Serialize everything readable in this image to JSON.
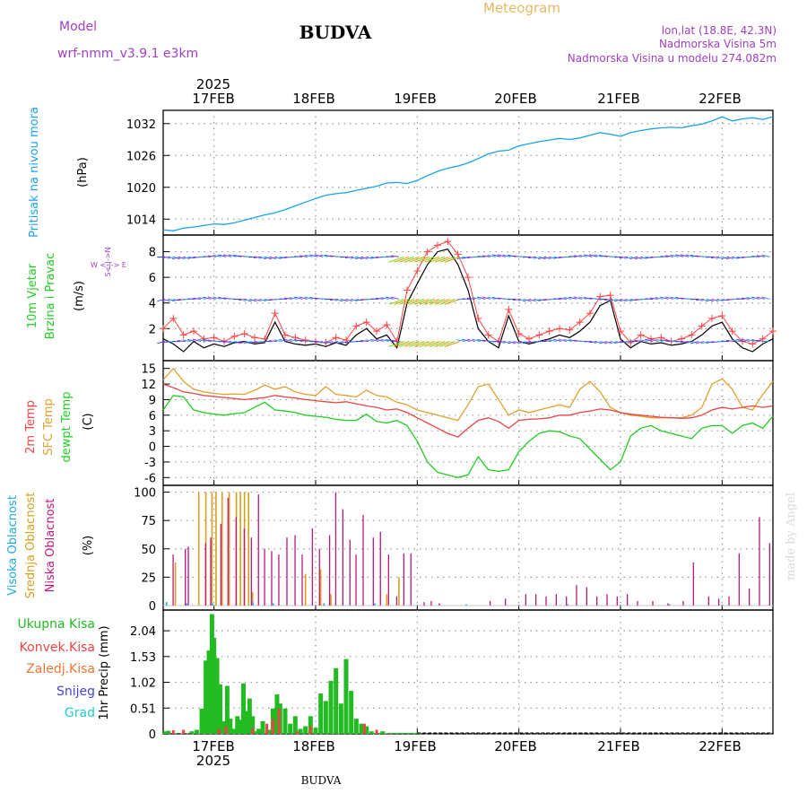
{
  "header": {
    "meteogram_label": "Meteogram",
    "station": "BUDVA",
    "model_label": "Model",
    "model_name": "wrf-nmm_v3.9.1  e3km",
    "coords": "lon,lat (18.8E, 42.3N)",
    "elevation": "Nadmorska Visina 5m",
    "model_elevation": "Nadmorska Visina u modelu 274.082m",
    "year_top": "2025",
    "year_bottom": "2025",
    "footer_station": "BUDVA",
    "watermark": "made by Angel"
  },
  "colors": {
    "pressure": "#1aa3e8",
    "wind_speed": "#000000",
    "gust": "#ff4444",
    "temp2m": "#e84545",
    "sfc_temp": "#e0a030",
    "dewpt": "#22cc22",
    "high_cloud": "#22aadd",
    "mid_cloud": "#d4a020",
    "low_cloud": "#c0187a",
    "total_precip": "#22bb22",
    "conv_precip": "#ee4444",
    "frz_precip": "#ee7733",
    "snow": "#4444dd",
    "hail": "#22cccc",
    "grid": "#999999",
    "header_purple": "#a040c0",
    "header_orange": "#e8b860"
  },
  "chart_data": [
    {
      "id": "pressure",
      "type": "line",
      "title": "Pritisak na nivou mora",
      "ylabel": "(hPa)",
      "yticks": [
        1014,
        1020,
        1026,
        1032
      ],
      "ylim": [
        1011,
        1034.5
      ],
      "x": [
        0,
        0.1,
        0.2,
        0.3,
        0.4,
        0.5,
        0.6,
        0.7,
        0.8,
        0.9,
        1.0,
        1.1,
        1.2,
        1.3,
        1.4,
        1.5,
        1.6,
        1.7,
        1.8,
        1.9,
        2.0,
        2.1,
        2.2,
        2.3,
        2.4,
        2.5,
        2.6,
        2.7,
        2.8,
        2.9,
        3.0,
        3.1,
        3.2,
        3.3,
        3.4,
        3.5,
        3.6,
        3.7,
        3.8,
        3.9,
        4.0,
        4.1,
        4.2,
        4.3,
        4.4,
        4.5,
        4.6,
        4.7,
        4.8,
        4.9,
        5.0,
        5.1,
        5.2,
        5.3,
        5.4,
        5.5,
        5.6,
        5.7,
        5.8,
        5.9,
        6.0
      ],
      "values": [
        1012,
        1011.8,
        1012.3,
        1012.5,
        1012.8,
        1013.1,
        1013,
        1013.3,
        1013.8,
        1014.3,
        1014.8,
        1015.2,
        1015.8,
        1016.5,
        1017.2,
        1017.9,
        1018.5,
        1018.8,
        1019,
        1019.4,
        1019.8,
        1020.2,
        1020.8,
        1020.9,
        1020.7,
        1021.3,
        1022.2,
        1023,
        1023.6,
        1024,
        1024.6,
        1025.4,
        1026.3,
        1026.8,
        1027,
        1027.8,
        1028.2,
        1028.6,
        1028.9,
        1029.2,
        1029.0,
        1029.3,
        1029.8,
        1030.3,
        1030.0,
        1029.6,
        1030.3,
        1030.7,
        1031.0,
        1031.2,
        1031.3,
        1031.2,
        1031.6,
        1031.9,
        1032.5,
        1033.3,
        1032.5,
        1032.9,
        1033.1,
        1032.8,
        1033.3
      ]
    },
    {
      "id": "wind",
      "type": "line",
      "title": "10m Vjetar",
      "title2": "Brzina i Pravac",
      "ylabel": "(m/s)",
      "compass": "W <-|-> E",
      "compass_ns": "S<-|->N",
      "yticks": [
        2,
        4,
        6,
        8
      ],
      "ylim": [
        -0.5,
        9.3
      ],
      "x": [
        0,
        0.1,
        0.2,
        0.3,
        0.4,
        0.5,
        0.6,
        0.7,
        0.8,
        0.9,
        1.0,
        1.1,
        1.2,
        1.3,
        1.4,
        1.5,
        1.6,
        1.7,
        1.8,
        1.9,
        2.0,
        2.1,
        2.2,
        2.3,
        2.4,
        2.5,
        2.6,
        2.7,
        2.8,
        2.9,
        3.0,
        3.1,
        3.2,
        3.3,
        3.4,
        3.5,
        3.6,
        3.7,
        3.8,
        3.9,
        4.0,
        4.1,
        4.2,
        4.3,
        4.4,
        4.5,
        4.6,
        4.7,
        4.8,
        4.9,
        5.0,
        5.1,
        5.2,
        5.3,
        5.4,
        5.5,
        5.6,
        5.7,
        5.8,
        5.9,
        6.0
      ],
      "speed": [
        1.2,
        0.8,
        0.2,
        1.0,
        0.5,
        0.8,
        0.6,
        0.9,
        1.0,
        0.8,
        0.9,
        2.5,
        1.0,
        0.8,
        0.7,
        0.8,
        0.6,
        0.9,
        0.7,
        1.5,
        2.0,
        1.2,
        1.5,
        0.5,
        4.0,
        5.5,
        7.0,
        8.0,
        8.2,
        7.0,
        5.0,
        2.0,
        1.0,
        0.5,
        3.0,
        1.0,
        0.8,
        1.0,
        1.2,
        1.5,
        1.3,
        1.8,
        2.5,
        3.8,
        4.2,
        1.2,
        0.5,
        1.0,
        0.8,
        0.9,
        0.7,
        0.8,
        1.0,
        1.5,
        2.2,
        2.5,
        1.2,
        0.5,
        0.2,
        0.8,
        1.2
      ],
      "gust": [
        2.0,
        2.8,
        1.5,
        1.8,
        1.2,
        1.3,
        1.0,
        1.4,
        1.6,
        1.3,
        1.2,
        3.2,
        1.5,
        1.3,
        1.1,
        1.0,
        0.9,
        1.3,
        1.1,
        2.2,
        2.5,
        1.8,
        2.3,
        1.0,
        5.0,
        6.5,
        8.0,
        8.5,
        8.8,
        7.8,
        6.0,
        2.8,
        1.5,
        1.0,
        3.5,
        1.6,
        1.2,
        1.5,
        1.8,
        2.0,
        1.9,
        2.5,
        3.2,
        4.5,
        4.6,
        1.8,
        0.9,
        1.5,
        1.2,
        1.3,
        1.0,
        1.2,
        1.5,
        2.2,
        2.8,
        3.0,
        1.8,
        1.0,
        0.8,
        1.2,
        1.8
      ],
      "barb_levels_note": "wind arrows drawn at three levels",
      "barb_levels": [
        7.6,
        4.3,
        1.0
      ]
    },
    {
      "id": "temperature",
      "type": "line",
      "title": "2m Temp",
      "title2": "SFC Temp",
      "title3": "dewpt Temp",
      "ylabel": "(C)",
      "yticks": [
        -6,
        -3,
        0,
        3,
        6,
        9,
        12,
        15
      ],
      "ylim": [
        -7.5,
        16.5
      ],
      "x": [
        0,
        0.1,
        0.2,
        0.3,
        0.4,
        0.5,
        0.6,
        0.7,
        0.8,
        0.9,
        1.0,
        1.1,
        1.2,
        1.3,
        1.4,
        1.5,
        1.6,
        1.7,
        1.8,
        1.9,
        2.0,
        2.1,
        2.2,
        2.3,
        2.4,
        2.5,
        2.6,
        2.7,
        2.8,
        2.9,
        3.0,
        3.1,
        3.2,
        3.3,
        3.4,
        3.5,
        3.6,
        3.7,
        3.8,
        3.9,
        4.0,
        4.1,
        4.2,
        4.3,
        4.4,
        4.5,
        4.6,
        4.7,
        4.8,
        4.9,
        5.0,
        5.1,
        5.2,
        5.3,
        5.4,
        5.5,
        5.6,
        5.7,
        5.8,
        5.9,
        6.0
      ],
      "temp2m": [
        12,
        11.3,
        10.5,
        10.2,
        9.8,
        9.6,
        9.4,
        9.2,
        9.0,
        9.2,
        9.4,
        9.8,
        9.5,
        9.3,
        9.0,
        8.8,
        8.6,
        8.4,
        8.6,
        8.2,
        7.8,
        7.5,
        7.0,
        7.2,
        6.5,
        5.5,
        4.5,
        3.5,
        2.5,
        1.8,
        3.5,
        5.0,
        5.5,
        4.8,
        3.5,
        5.0,
        5.2,
        5.3,
        5.5,
        6.0,
        6.0,
        6.5,
        6.8,
        7.2,
        7.0,
        6.5,
        6.2,
        6.0,
        5.8,
        5.6,
        5.5,
        5.4,
        5.5,
        6.0,
        7.0,
        7.5,
        7.2,
        7.5,
        7.8,
        7.5,
        7.8
      ],
      "sfc_temp": [
        12.8,
        15.0,
        12.5,
        11.0,
        10.5,
        10.2,
        10.0,
        10.1,
        10.0,
        10.8,
        11.8,
        11.0,
        11.5,
        10.5,
        10.0,
        9.8,
        11.5,
        10.0,
        9.8,
        9.5,
        10.8,
        9.8,
        9.5,
        8.5,
        8.0,
        7.0,
        6.5,
        6.0,
        5.5,
        5.0,
        8.0,
        11.5,
        12.0,
        9.0,
        6.0,
        7.0,
        6.5,
        7.0,
        7.5,
        8.0,
        7.5,
        11.0,
        12.5,
        10.5,
        7.5,
        6.5,
        6.0,
        5.8,
        5.5,
        5.5,
        5.5,
        5.5,
        6.0,
        7.5,
        12.0,
        13.0,
        11.0,
        7.5,
        7.0,
        10.0,
        12.5
      ],
      "dewpt": [
        7.0,
        9.8,
        9.5,
        7.0,
        6.5,
        6.2,
        6.0,
        6.3,
        6.5,
        7.5,
        8.5,
        7.0,
        6.8,
        6.5,
        6.0,
        5.8,
        5.6,
        5.2,
        5.0,
        5.0,
        6.2,
        4.8,
        4.5,
        5.0,
        4.0,
        1.0,
        -3.0,
        -5.0,
        -5.5,
        -6.0,
        -5.5,
        -2.0,
        -4.5,
        -4.8,
        -4.5,
        -1.0,
        1.0,
        2.5,
        3.0,
        2.8,
        2.0,
        1.5,
        -0.5,
        -2.5,
        -4.5,
        -3.0,
        2.0,
        3.5,
        4.0,
        3.0,
        2.5,
        2.0,
        1.5,
        3.5,
        4.0,
        4.0,
        2.5,
        4.0,
        4.5,
        3.5,
        5.8
      ]
    },
    {
      "id": "cloud",
      "type": "bar",
      "title": "Visoka Oblacnost",
      "title2": "Srednja Oblacnost",
      "title3": "Niska Oblacnost",
      "ylabel": "(%)",
      "yticks": [
        0,
        25,
        50,
        75,
        100
      ],
      "ylim": [
        -4,
        106
      ],
      "low_x": [
        0.08,
        0.2,
        0.23,
        0.4,
        0.45,
        0.55,
        0.62,
        0.7,
        0.78,
        0.85,
        0.92,
        0.98,
        1.05,
        1.12,
        1.2,
        1.28,
        1.35,
        1.45,
        1.52,
        1.62,
        1.68,
        1.75,
        1.82,
        1.88,
        1.95,
        2.05,
        2.12,
        2.2,
        2.28,
        2.35,
        2.42,
        2.55,
        2.62,
        2.7,
        3.2,
        3.35,
        3.55,
        3.65,
        3.75,
        3.85,
        3.95,
        4.05,
        4.15,
        4.25,
        4.35,
        4.45,
        4.55,
        4.65,
        4.8,
        4.95,
        5.1,
        5.2,
        5.35,
        5.45,
        5.55,
        5.65,
        5.75,
        5.85,
        5.95
      ],
      "low_values": [
        45,
        50,
        52,
        55,
        60,
        72,
        95,
        78,
        68,
        60,
        98,
        50,
        48,
        45,
        60,
        62,
        45,
        68,
        50,
        62,
        100,
        85,
        58,
        45,
        80,
        60,
        65,
        45,
        8,
        46,
        46,
        3,
        4,
        2,
        4,
        6,
        10,
        10,
        8,
        10,
        8,
        18,
        16,
        8,
        10,
        8,
        10,
        4,
        4,
        2,
        4,
        38,
        8,
        6,
        8,
        46,
        15,
        78,
        55
      ],
      "mid_x": [
        0.12,
        0.35,
        0.42,
        0.48,
        0.52,
        0.58,
        0.65,
        0.72,
        0.76,
        0.8,
        0.84,
        0.88,
        1.4,
        1.55,
        1.65,
        2.2,
        2.32
      ],
      "mid_values": [
        38,
        100,
        100,
        100,
        100,
        100,
        100,
        100,
        100,
        100,
        100,
        12,
        28,
        32,
        10,
        10,
        25
      ],
      "high_x": [
        0.05,
        0.25,
        0.5,
        0.9,
        1.1,
        1.6,
        2.1,
        3.0,
        4.0,
        5.0
      ],
      "high_values": [
        3,
        2,
        2,
        3,
        2,
        2,
        2,
        1,
        1,
        1
      ]
    },
    {
      "id": "precip",
      "type": "bar",
      "legend": [
        "Ukupna Kisa",
        "Konvek.Kisa",
        "Zaledj.Kisa",
        "Snijeg",
        "Grad"
      ],
      "ylabel": "1hr Precip (mm)",
      "yticks": [
        0,
        0.51,
        1.02,
        1.53,
        2.04
      ],
      "ylim": [
        0,
        2.45
      ],
      "total_x": [
        0.02,
        0.05,
        0.28,
        0.33,
        0.38,
        0.42,
        0.45,
        0.48,
        0.5,
        0.53,
        0.56,
        0.6,
        0.63,
        0.66,
        0.7,
        0.73,
        0.76,
        0.79,
        0.82,
        0.85,
        0.88,
        0.91,
        0.94,
        0.98,
        1.05,
        1.08,
        1.12,
        1.15,
        1.2,
        1.25,
        1.3,
        1.35,
        1.4,
        1.45,
        1.5,
        1.55,
        1.6,
        1.65,
        1.7,
        1.75,
        1.8,
        1.85,
        1.9,
        1.95,
        2.0,
        2.05,
        2.1,
        2.13,
        2.16,
        2.2,
        2.25,
        2.3,
        2.35,
        2.4,
        2.45,
        2.5
      ],
      "total_values": [
        0.05,
        0.06,
        0.05,
        0.08,
        0.5,
        1.45,
        1.65,
        2.37,
        1.9,
        1.5,
        0.98,
        0.25,
        0.95,
        0.3,
        0.1,
        0.35,
        0.28,
        1.0,
        0.45,
        0.7,
        0.35,
        0.05,
        0.1,
        0.25,
        0.08,
        0.5,
        0.78,
        0.6,
        0.5,
        0.2,
        0.35,
        0.1,
        0.15,
        0.35,
        0.12,
        0.8,
        0.65,
        1.05,
        1.3,
        0.6,
        1.48,
        0.85,
        0.3,
        0.2,
        0.15,
        0.05,
        0.02,
        0.02,
        0.05,
        0.01,
        0.02,
        0.02,
        0.02,
        0.02,
        0.02,
        0.02
      ],
      "conv_x": [
        0.1,
        0.2,
        0.55,
        0.62,
        0.88,
        1.02,
        1.08,
        1.14,
        1.32,
        1.45,
        1.98,
        2.1
      ],
      "conv_values": [
        0.07,
        0.08,
        0.1,
        0.15,
        0.12,
        0.2,
        0.3,
        0.5,
        0.05,
        0.15,
        0.2,
        0.08
      ]
    }
  ],
  "time_axis": {
    "tick_labels": [
      "17FEB",
      "18FEB",
      "19FEB",
      "20FEB",
      "21FEB",
      "22FEB"
    ],
    "tick_positions_days": [
      0.5,
      1.5,
      2.5,
      3.5,
      4.5,
      5.5
    ],
    "xlim_days": [
      0,
      6.0
    ]
  }
}
